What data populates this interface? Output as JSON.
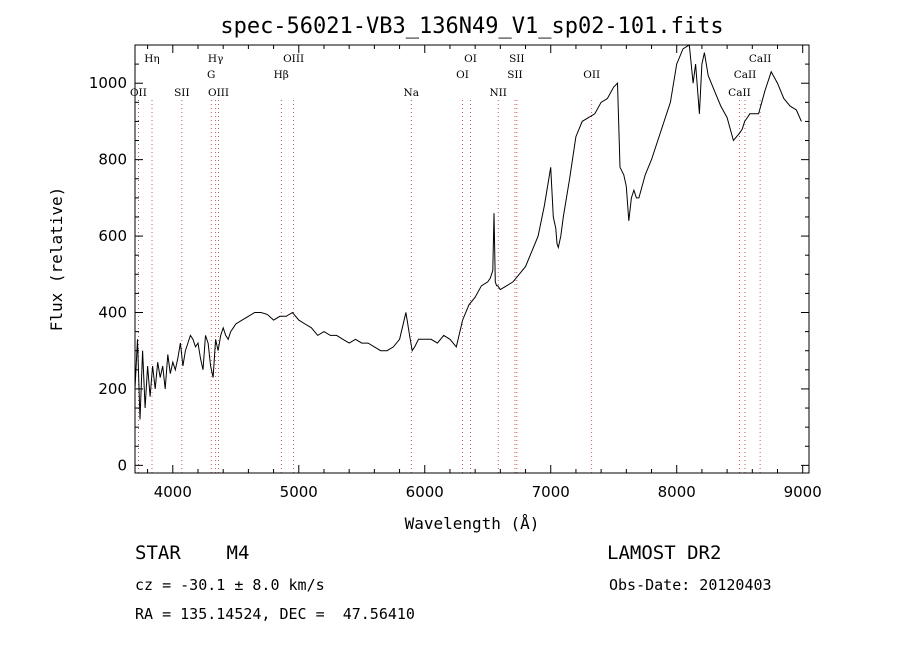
{
  "chart_data": {
    "type": "line",
    "title": "spec-56021-VB3_136N49_V1_sp02-101.fits",
    "xlabel": "Wavelength (Å)",
    "ylabel": "Flux (relative)",
    "xlim": [
      3700,
      9050
    ],
    "ylim": [
      -20,
      1100
    ],
    "x_ticks": [
      4000,
      5000,
      6000,
      7000,
      8000,
      9000
    ],
    "y_ticks": [
      0,
      200,
      400,
      600,
      800,
      1000
    ],
    "grid": false,
    "series": [
      {
        "x": [
          3700,
          3720,
          3740,
          3760,
          3780,
          3800,
          3820,
          3840,
          3860,
          3880,
          3900,
          3920,
          3940,
          3960,
          3980,
          4000,
          4020,
          4040,
          4060,
          4080,
          4100,
          4120,
          4140,
          4160,
          4180,
          4200,
          4220,
          4240,
          4260,
          4280,
          4300,
          4320,
          4340,
          4360,
          4380,
          4400,
          4420,
          4440,
          4460,
          4480,
          4500,
          4550,
          4600,
          4650,
          4700,
          4750,
          4800,
          4850,
          4900,
          4950,
          5000,
          5050,
          5100,
          5150,
          5200,
          5250,
          5300,
          5350,
          5400,
          5450,
          5500,
          5550,
          5600,
          5650,
          5700,
          5750,
          5800,
          5850,
          5880,
          5900,
          5920,
          5950,
          6000,
          6050,
          6100,
          6150,
          6200,
          6250,
          6300,
          6350,
          6400,
          6450,
          6500,
          6520,
          6540,
          6550,
          6560,
          6570,
          6580,
          6600,
          6650,
          6700,
          6750,
          6800,
          6850,
          6900,
          6950,
          7000,
          7020,
          7040,
          7050,
          7060,
          7080,
          7100,
          7150,
          7200,
          7250,
          7300,
          7350,
          7400,
          7450,
          7500,
          7530,
          7550,
          7580,
          7600,
          7620,
          7640,
          7660,
          7680,
          7700,
          7750,
          7800,
          7850,
          7900,
          7950,
          8000,
          8050,
          8100,
          8130,
          8150,
          8180,
          8200,
          8220,
          8250,
          8300,
          8350,
          8400,
          8450,
          8500,
          8520,
          8540,
          8560,
          8580,
          8600,
          8650,
          8700,
          8750,
          8800,
          8850,
          8900,
          8950,
          8990
        ],
        "y": [
          200,
          330,
          120,
          300,
          150,
          260,
          180,
          260,
          200,
          270,
          230,
          260,
          200,
          290,
          240,
          270,
          250,
          280,
          320,
          260,
          300,
          320,
          340,
          330,
          310,
          320,
          280,
          250,
          340,
          320,
          260,
          230,
          330,
          300,
          340,
          360,
          340,
          330,
          350,
          360,
          370,
          380,
          390,
          400,
          400,
          395,
          380,
          390,
          390,
          400,
          380,
          370,
          360,
          340,
          350,
          340,
          340,
          330,
          320,
          330,
          320,
          320,
          310,
          300,
          300,
          310,
          330,
          400,
          340,
          300,
          310,
          330,
          330,
          330,
          320,
          340,
          330,
          310,
          380,
          420,
          440,
          470,
          480,
          490,
          510,
          660,
          480,
          470,
          470,
          460,
          470,
          480,
          500,
          520,
          560,
          600,
          680,
          780,
          650,
          620,
          580,
          570,
          600,
          650,
          750,
          860,
          900,
          910,
          920,
          950,
          960,
          990,
          1000,
          780,
          760,
          730,
          640,
          700,
          720,
          700,
          700,
          760,
          800,
          850,
          900,
          950,
          1050,
          1090,
          1100,
          1000,
          1050,
          920,
          1050,
          1080,
          1020,
          980,
          940,
          910,
          850,
          870,
          880,
          900,
          910,
          920,
          920,
          920,
          980,
          1030,
          1000,
          960,
          940,
          930,
          900
        ]
      }
    ],
    "spectral_lines": [
      {
        "label": "Hη",
        "x": 3835,
        "row": 0
      },
      {
        "label": "OII",
        "x": 3727,
        "row": 2
      },
      {
        "label": "SII",
        "x": 4072,
        "row": 2
      },
      {
        "label": "Hγ",
        "x": 4340,
        "row": 0
      },
      {
        "label": "G",
        "x": 4305,
        "row": 1
      },
      {
        "label": "OIII",
        "x": 4363,
        "row": 2
      },
      {
        "label": "OIII",
        "x": 4959,
        "row": 0
      },
      {
        "label": "Hβ",
        "x": 4861,
        "row": 1
      },
      {
        "label": "Na",
        "x": 5893,
        "row": 2
      },
      {
        "label": "OI",
        "x": 6363,
        "row": 0
      },
      {
        "label": "OI",
        "x": 6300,
        "row": 1
      },
      {
        "label": "NII",
        "x": 6583,
        "row": 2
      },
      {
        "label": "SII",
        "x": 6731,
        "row": 0
      },
      {
        "label": "SII",
        "x": 6716,
        "row": 1
      },
      {
        "label": "OII",
        "x": 7325,
        "row": 1
      },
      {
        "label": "CaII",
        "x": 8662,
        "row": 0
      },
      {
        "label": "CaII",
        "x": 8542,
        "row": 1
      },
      {
        "label": "CaII",
        "x": 8498,
        "row": 2
      }
    ]
  },
  "info": {
    "object_class": "STAR",
    "subclass": "M4",
    "survey": "LAMOST DR2",
    "cz": "cz = -30.1 ± 8.0 km/s",
    "obs_date": "Obs-Date: 20120403",
    "radec": "RA = 135.14524, DEC =  47.56410"
  }
}
